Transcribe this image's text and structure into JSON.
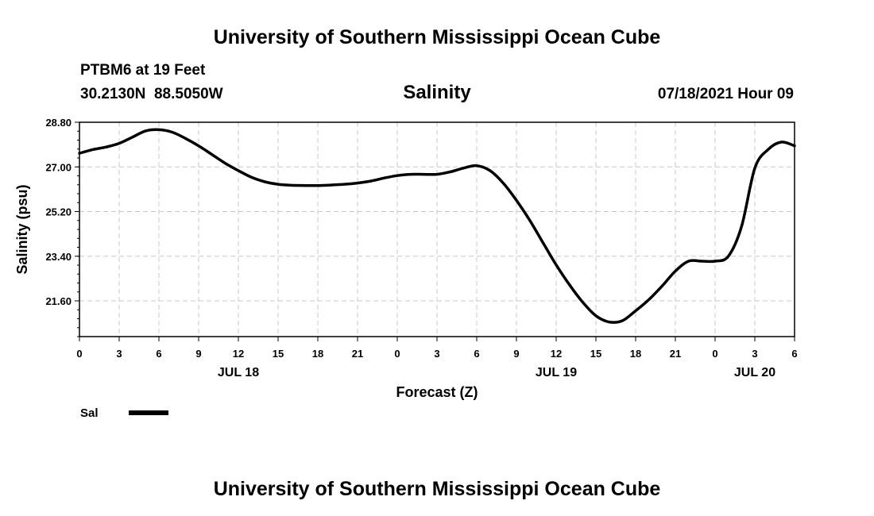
{
  "page": {
    "title_top": "University of Southern Mississippi Ocean Cube",
    "title_bottom": "University of Southern Mississippi Ocean Cube",
    "station": "PTBM6 at 19 Feet",
    "coords": "30.2130N  88.5050W",
    "parameter": "Salinity",
    "datetime": "07/18/2021 Hour 09"
  },
  "chart_data": {
    "type": "line",
    "ylabel": "Salinity (psu)",
    "xlabel": "Forecast (Z)",
    "ylim": [
      20.16,
      28.8
    ],
    "yticks": [
      28.8,
      27.0,
      25.2,
      23.4,
      21.6
    ],
    "ytick_labels": [
      "28.80",
      "27.00",
      "25.20",
      "23.40",
      "21.60"
    ],
    "xlim": [
      0,
      54
    ],
    "x_tick_hours": [
      0,
      3,
      6,
      9,
      12,
      15,
      18,
      21,
      24,
      27,
      30,
      33,
      36,
      39,
      42,
      45,
      48,
      51,
      54
    ],
    "x_tick_labels": [
      "0",
      "3",
      "6",
      "9",
      "12",
      "15",
      "18",
      "21",
      "0",
      "3",
      "6",
      "9",
      "12",
      "15",
      "18",
      "21",
      "0",
      "3",
      "6"
    ],
    "date_labels": [
      {
        "hour": 12,
        "text": "JUL 18"
      },
      {
        "hour": 36,
        "text": "JUL 19"
      },
      {
        "hour": 51,
        "text": "JUL 20"
      }
    ],
    "grid": true,
    "series": [
      {
        "name": "Sal",
        "color": "#000000",
        "x": [
          0,
          1,
          2,
          3,
          4,
          5,
          6,
          7,
          8,
          9,
          10,
          11,
          12,
          13,
          14,
          15,
          16,
          17,
          18,
          19,
          20,
          21,
          22,
          23,
          24,
          25,
          26,
          27,
          28,
          29,
          30,
          31,
          32,
          33,
          34,
          35,
          36,
          37,
          38,
          39,
          40,
          41,
          42,
          43,
          44,
          45,
          46,
          47,
          48,
          49,
          50,
          51,
          52,
          53,
          54
        ],
        "y": [
          27.55,
          27.7,
          27.8,
          27.95,
          28.2,
          28.45,
          28.5,
          28.4,
          28.15,
          27.85,
          27.5,
          27.15,
          26.85,
          26.58,
          26.4,
          26.3,
          26.26,
          26.25,
          26.25,
          26.27,
          26.3,
          26.35,
          26.43,
          26.55,
          26.65,
          26.7,
          26.7,
          26.7,
          26.8,
          26.95,
          27.05,
          26.85,
          26.35,
          25.65,
          24.85,
          23.95,
          23.05,
          22.25,
          21.55,
          21.0,
          20.75,
          20.8,
          21.2,
          21.65,
          22.2,
          22.8,
          23.2,
          23.2,
          23.2,
          23.4,
          24.6,
          26.95,
          27.7,
          28.0,
          27.85
        ]
      }
    ],
    "legend": {
      "label": "Sal",
      "position": "bottom-left"
    }
  }
}
